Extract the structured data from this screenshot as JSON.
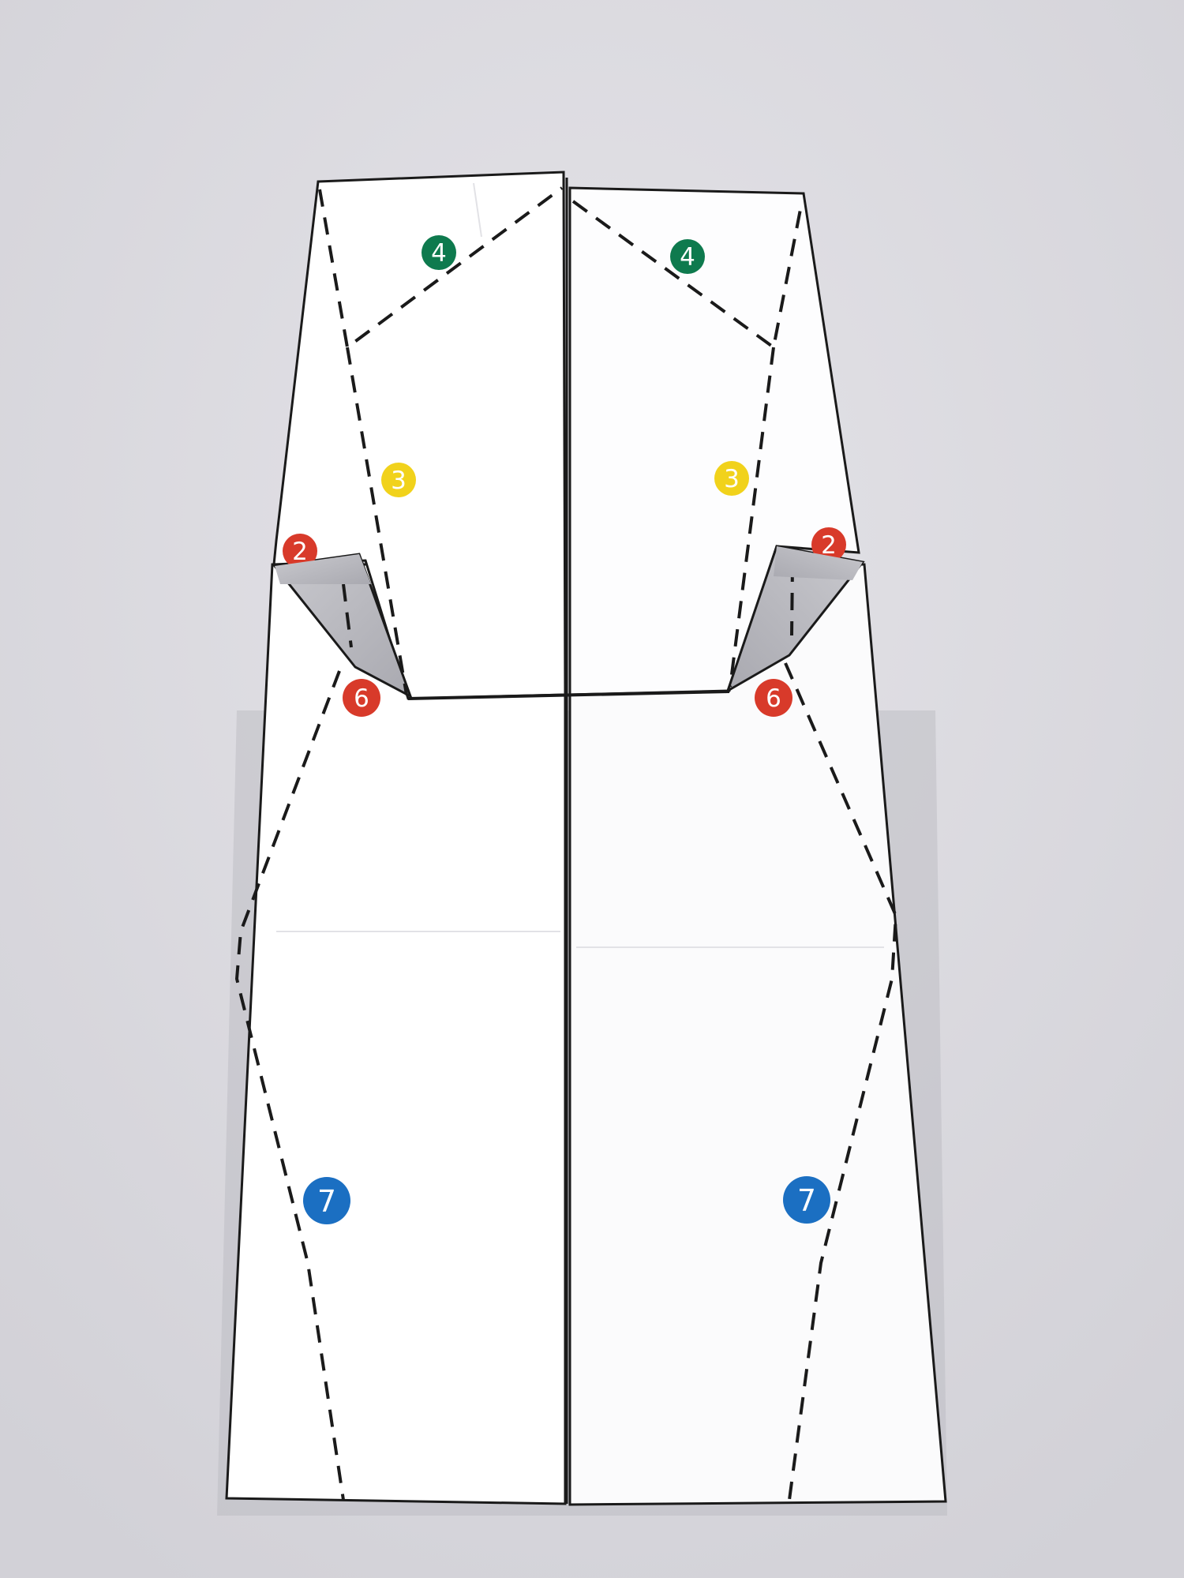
{
  "photo": {
    "background_color": "#dcdbe0",
    "paper_color": "#ffffff",
    "outline_color": "#1a1a1a",
    "dash_color": "#1a1a1a"
  },
  "markers": [
    {
      "id": "m4-left",
      "label": "4",
      "color": "#0e7a4e",
      "text_color": "#ffffff"
    },
    {
      "id": "m4-right",
      "label": "4",
      "color": "#0e7a4e",
      "text_color": "#ffffff"
    },
    {
      "id": "m3-left",
      "label": "3",
      "color": "#f1d21b",
      "text_color": "#ffffff"
    },
    {
      "id": "m3-right",
      "label": "3",
      "color": "#f1d21b",
      "text_color": "#ffffff"
    },
    {
      "id": "m2-left",
      "label": "2",
      "color": "#d83a2a",
      "text_color": "#ffffff"
    },
    {
      "id": "m2-right",
      "label": "2",
      "color": "#d83a2a",
      "text_color": "#ffffff"
    },
    {
      "id": "m6-left",
      "label": "6",
      "color": "#d83a2a",
      "text_color": "#ffffff"
    },
    {
      "id": "m6-right",
      "label": "6",
      "color": "#d83a2a",
      "text_color": "#ffffff"
    },
    {
      "id": "m7-left",
      "label": "7",
      "color": "#1b6fc2",
      "text_color": "#ffffff"
    },
    {
      "id": "m7-right",
      "label": "7",
      "color": "#1b6fc2",
      "text_color": "#ffffff"
    }
  ]
}
